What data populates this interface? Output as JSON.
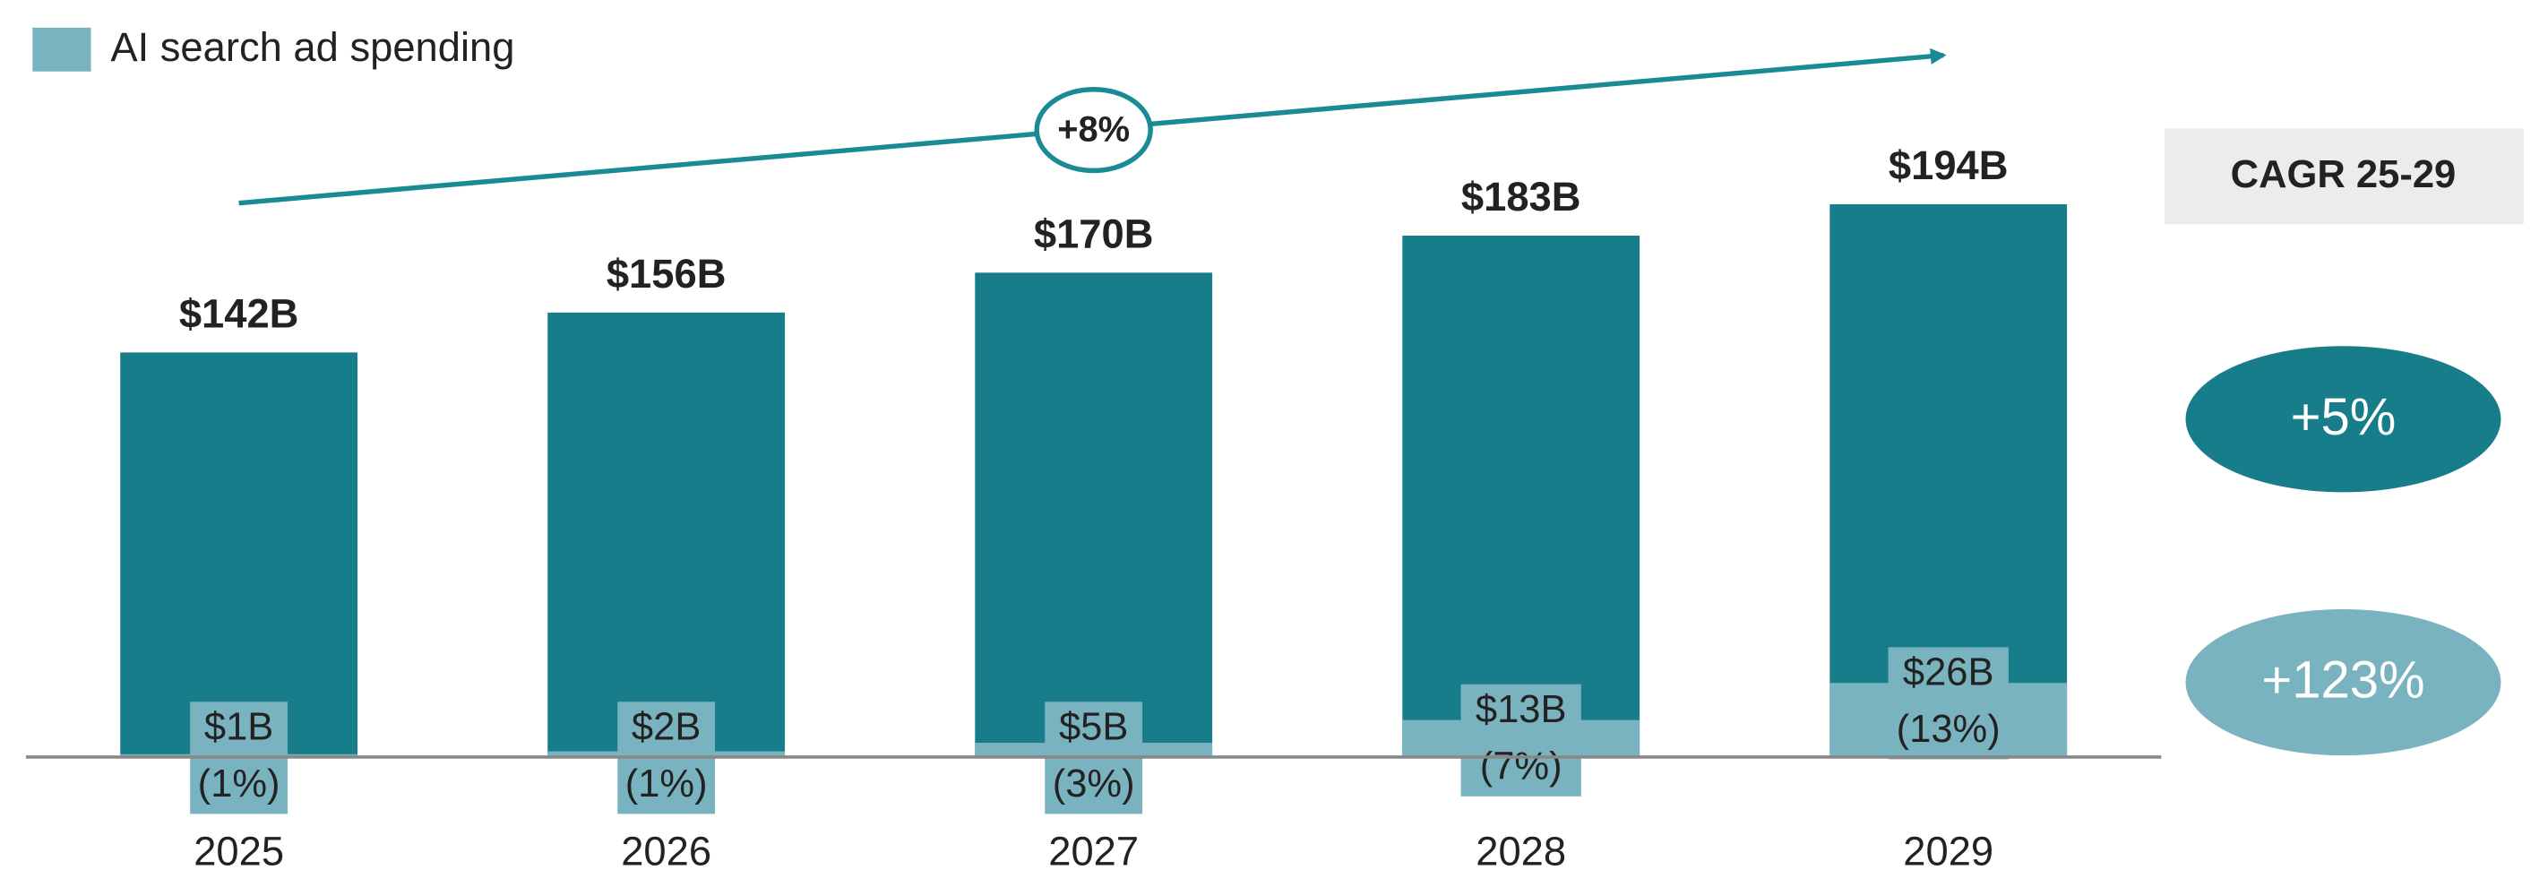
{
  "chart_data": {
    "type": "bar",
    "categories": [
      "2025",
      "2026",
      "2027",
      "2028",
      "2029"
    ],
    "series": [
      {
        "color": "#187d8a",
        "values": [
          142,
          156,
          170,
          183,
          194
        ],
        "value_labels": [
          "$142B",
          "$156B",
          "$170B",
          "$183B",
          "$194B"
        ]
      },
      {
        "name": "AI search ad spending",
        "color": "#7ab3c0",
        "values": [
          1,
          2,
          5,
          13,
          26
        ],
        "value_labels": [
          "$1B",
          "$2B",
          "$5B",
          "$13B",
          "$26B"
        ]
      }
    ],
    "shares": {
      "values": [
        1,
        1,
        3,
        7,
        13
      ],
      "value_labels": [
        "(1%)",
        "(1%)",
        "(3%)",
        "(7%)",
        "(13%)"
      ]
    },
    "ylim": [
      0,
      260
    ],
    "trend": {
      "value": 8,
      "label": "+8%",
      "color": "#1a8b96"
    },
    "cagr": {
      "title": "CAGR 25-29",
      "items": [
        {
          "value": 5,
          "label": "+5%",
          "color": "#187d8a"
        },
        {
          "value": 123,
          "label": "+123%",
          "color": "#7ab3c0"
        }
      ]
    }
  }
}
